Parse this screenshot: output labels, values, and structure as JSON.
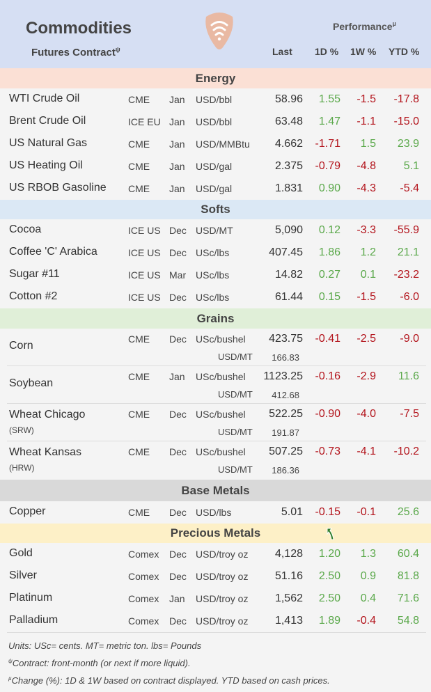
{
  "header": {
    "title": "Commodities",
    "subtitle": "Futures Contract",
    "subtitle_mark": "ψ",
    "performance": "Performance",
    "performance_mark": "µ",
    "columns": {
      "last": "Last",
      "d1": "1D %",
      "w1": "1W %",
      "ytd": "YTD %"
    }
  },
  "colors": {
    "positive": "#5aa84a",
    "negative": "#b3141c",
    "header_bg": "#d6dff3"
  },
  "sections": [
    {
      "name": "Energy",
      "bg": "#fbe0d5",
      "rows": [
        {
          "name": "WTI Crude Oil",
          "exchange": "CME",
          "month": "Jan",
          "unit": "USD/bbl",
          "last": "58.96",
          "d1": "1.55",
          "w1": "-1.5",
          "ytd": "-17.8"
        },
        {
          "name": "Brent Crude Oil",
          "exchange": "ICE EU",
          "month": "Jan",
          "unit": "USD/bbl",
          "last": "63.48",
          "d1": "1.47",
          "w1": "-1.1",
          "ytd": "-15.0"
        },
        {
          "name": "US Natural Gas",
          "exchange": "CME",
          "month": "Jan",
          "unit": "USD/MMBtu",
          "last": "4.662",
          "d1": "-1.71",
          "w1": "1.5",
          "ytd": "23.9"
        },
        {
          "name": "US Heating Oil",
          "exchange": "CME",
          "month": "Jan",
          "unit": "USD/gal",
          "last": "2.375",
          "d1": "-0.79",
          "w1": "-4.8",
          "ytd": "5.1"
        },
        {
          "name": "US RBOB Gasoline",
          "exchange": "CME",
          "month": "Jan",
          "unit": "USD/gal",
          "last": "1.831",
          "d1": "0.90",
          "w1": "-4.3",
          "ytd": "-5.4"
        }
      ]
    },
    {
      "name": "Softs",
      "bg": "#dbe8f5",
      "rows": [
        {
          "name": "Cocoa",
          "exchange": "ICE US",
          "month": "Dec",
          "unit": "USD/MT",
          "last": "5,090",
          "d1": "0.12",
          "w1": "-3.3",
          "ytd": "-55.9"
        },
        {
          "name": "Coffee 'C' Arabica",
          "exchange": "ICE US",
          "month": "Dec",
          "unit": "USc/lbs",
          "last": "407.45",
          "d1": "1.86",
          "w1": "1.2",
          "ytd": "21.1"
        },
        {
          "name": "Sugar #11",
          "exchange": "ICE US",
          "month": "Mar",
          "unit": "USc/lbs",
          "last": "14.82",
          "d1": "0.27",
          "w1": "0.1",
          "ytd": "-23.2"
        },
        {
          "name": "Cotton #2",
          "exchange": "ICE US",
          "month": "Dec",
          "unit": "USc/lbs",
          "last": "61.44",
          "d1": "0.15",
          "w1": "-1.5",
          "ytd": "-6.0"
        }
      ]
    },
    {
      "name": "Grains",
      "bg": "#e0efd8",
      "rows": [
        {
          "name": "Corn",
          "name2": "",
          "exchange": "CME",
          "month": "Dec",
          "unit": "USc/bushel",
          "last": "423.75",
          "unit2": "USD/MT",
          "last2": "166.83",
          "d1": "-0.41",
          "w1": "-2.5",
          "ytd": "-9.0"
        },
        {
          "name": "Soybean",
          "name2": "",
          "exchange": "CME",
          "month": "Jan",
          "unit": "USc/bushel",
          "last": "1123.25",
          "unit2": "USD/MT",
          "last2": "412.68",
          "d1": "-0.16",
          "w1": "-2.9",
          "ytd": "11.6"
        },
        {
          "name": "Wheat Chicago",
          "name2": "(SRW)",
          "exchange": "CME",
          "month": "Dec",
          "unit": "USc/bushel",
          "last": "522.25",
          "unit2": "USD/MT",
          "last2": "191.87",
          "d1": "-0.90",
          "w1": "-4.0",
          "ytd": "-7.5"
        },
        {
          "name": "Wheat Kansas",
          "name2": "(HRW)",
          "exchange": "CME",
          "month": "Dec",
          "unit": "USc/bushel",
          "last": "507.25",
          "unit2": "USD/MT",
          "last2": "186.36",
          "d1": "-0.73",
          "w1": "-4.1",
          "ytd": "-10.2"
        }
      ]
    },
    {
      "name": "Base Metals",
      "bg": "#d9d9d9",
      "rows": [
        {
          "name": "Copper",
          "exchange": "CME",
          "month": "Dec",
          "unit": "USD/lbs",
          "last": "5.01",
          "d1": "-0.15",
          "w1": "-0.1",
          "ytd": "25.6"
        }
      ]
    },
    {
      "name": "Precious Metals",
      "bg": "#fdf0c7",
      "rows": [
        {
          "name": "Gold",
          "exchange": "Comex",
          "month": "Dec",
          "unit": "USD/troy oz",
          "last": "4,128",
          "d1": "1.20",
          "w1": "1.3",
          "ytd": "60.4"
        },
        {
          "name": "Silver",
          "exchange": "Comex",
          "month": "Dec",
          "unit": "USD/troy oz",
          "last": "51.16",
          "d1": "2.50",
          "w1": "0.9",
          "ytd": "81.8"
        },
        {
          "name": "Platinum",
          "exchange": "Comex",
          "month": "Jan",
          "unit": "USD/troy oz",
          "last": "1,562",
          "d1": "2.50",
          "w1": "0.4",
          "ytd": "71.6"
        },
        {
          "name": "Palladium",
          "exchange": "Comex",
          "month": "Dec",
          "unit": "USD/troy oz",
          "last": "1,413",
          "d1": "1.89",
          "w1": "-0.4",
          "ytd": "54.8"
        }
      ]
    }
  ],
  "footnotes": [
    {
      "mark": "",
      "text": "Units: USc= cents.  MT= metric ton.  lbs= Pounds"
    },
    {
      "mark": "ψ",
      "text": "Contract: front-month (or next if more liquid)."
    },
    {
      "mark": "µ",
      "text": "Change (%): 1D & 1W based on contract displayed. YTD based on cash prices."
    }
  ],
  "icons": {
    "logo": "wifi-pick-logo-icon",
    "cursor": "arrow-cursor-icon"
  }
}
